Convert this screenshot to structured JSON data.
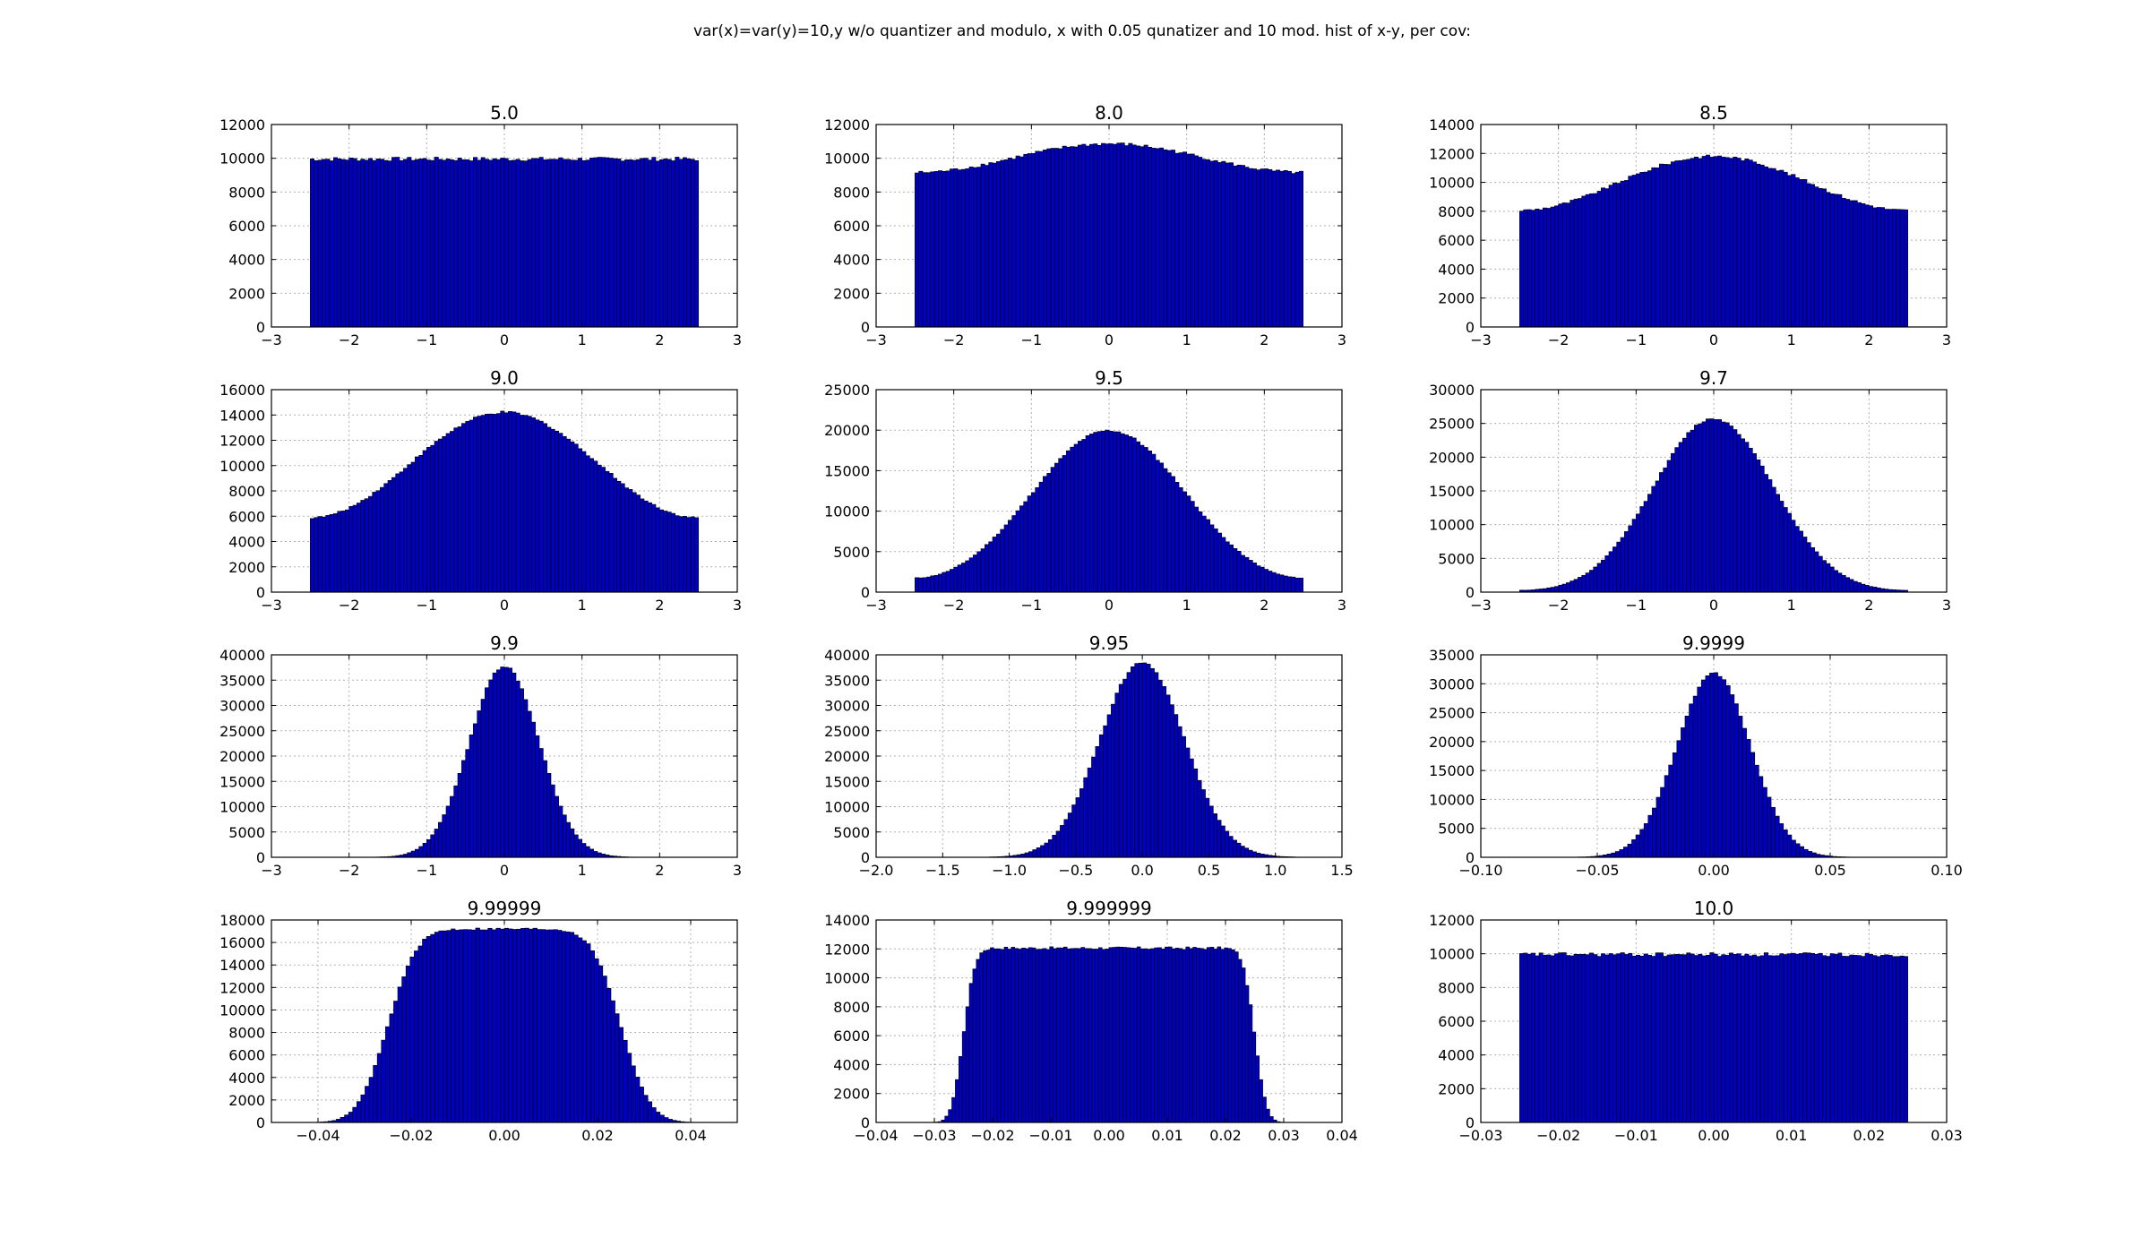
{
  "figure": {
    "suptitle": "var(x)=var(y)=10,y w/o quantizer and modulo, x with 0.05 qunatizer and 10 mod. hist of x-y, per cov:"
  },
  "colors": {
    "bar_fill": "#0000bf",
    "bar_edge": "#000000",
    "grid": "#b0b0b0",
    "axes": "#000000"
  },
  "chart_data": [
    {
      "type": "bar",
      "title": "5.0",
      "shape": "uniform",
      "xlim": [
        -3,
        3
      ],
      "ylim": [
        0,
        12000
      ],
      "xticks": [
        -3,
        -2,
        -1,
        0,
        1,
        2,
        3
      ],
      "xtick_labels": [
        "−3",
        "−2",
        "−1",
        "0",
        "1",
        "2",
        "3"
      ],
      "yticks": [
        0,
        2000,
        4000,
        6000,
        8000,
        10000,
        12000
      ],
      "ytick_labels": [
        "0",
        "2000",
        "4000",
        "6000",
        "8000",
        "10000",
        "12000"
      ],
      "bins": 100,
      "x_range": [
        -2.5,
        2.5
      ],
      "level": 9950,
      "noise": 120,
      "xlabel": "",
      "ylabel": ""
    },
    {
      "type": "bar",
      "title": "8.0",
      "shape": "gauss_mod",
      "xlim": [
        -3,
        3
      ],
      "ylim": [
        0,
        12000
      ],
      "xticks": [
        -3,
        -2,
        -1,
        0,
        1,
        2,
        3
      ],
      "xtick_labels": [
        "−3",
        "−2",
        "−1",
        "0",
        "1",
        "2",
        "3"
      ],
      "yticks": [
        0,
        2000,
        4000,
        6000,
        8000,
        10000,
        12000
      ],
      "ytick_labels": [
        "0",
        "2000",
        "4000",
        "6000",
        "8000",
        "10000",
        "12000"
      ],
      "bins": 100,
      "x_range": [
        -2.5,
        2.5
      ],
      "sigma": 2.0,
      "peak": 10850,
      "noise": 100,
      "xlabel": "",
      "ylabel": ""
    },
    {
      "type": "bar",
      "title": "8.5",
      "shape": "gauss_mod",
      "xlim": [
        -3,
        3
      ],
      "ylim": [
        0,
        14000
      ],
      "xticks": [
        -3,
        -2,
        -1,
        0,
        1,
        2,
        3
      ],
      "xtick_labels": [
        "−3",
        "−2",
        "−1",
        "0",
        "1",
        "2",
        "3"
      ],
      "yticks": [
        0,
        2000,
        4000,
        6000,
        8000,
        10000,
        12000,
        14000
      ],
      "ytick_labels": [
        "0",
        "2000",
        "4000",
        "6000",
        "8000",
        "10000",
        "12000",
        "14000"
      ],
      "bins": 100,
      "x_range": [
        -2.5,
        2.5
      ],
      "sigma": 1.73,
      "peak": 11800,
      "noise": 110,
      "xlabel": "",
      "ylabel": ""
    },
    {
      "type": "bar",
      "title": "9.0",
      "shape": "gauss_mod",
      "xlim": [
        -3,
        3
      ],
      "ylim": [
        0,
        16000
      ],
      "xticks": [
        -3,
        -2,
        -1,
        0,
        1,
        2,
        3
      ],
      "xtick_labels": [
        "−3",
        "−2",
        "−1",
        "0",
        "1",
        "2",
        "3"
      ],
      "yticks": [
        0,
        2000,
        4000,
        6000,
        8000,
        10000,
        12000,
        14000,
        16000
      ],
      "ytick_labels": [
        "0",
        "2000",
        "4000",
        "6000",
        "8000",
        "10000",
        "12000",
        "14000",
        "16000"
      ],
      "bins": 100,
      "x_range": [
        -2.5,
        2.5
      ],
      "sigma": 1.41,
      "peak": 14200,
      "noise": 110,
      "xlabel": "",
      "ylabel": ""
    },
    {
      "type": "bar",
      "title": "9.5",
      "shape": "gauss_mod",
      "xlim": [
        -3,
        3
      ],
      "ylim": [
        0,
        25000
      ],
      "xticks": [
        -3,
        -2,
        -1,
        0,
        1,
        2,
        3
      ],
      "xtick_labels": [
        "−3",
        "−2",
        "−1",
        "0",
        "1",
        "2",
        "3"
      ],
      "yticks": [
        0,
        5000,
        10000,
        15000,
        20000,
        25000
      ],
      "ytick_labels": [
        "0",
        "5000",
        "10000",
        "15000",
        "20000",
        "25000"
      ],
      "bins": 100,
      "x_range": [
        -2.5,
        2.5
      ],
      "sigma": 1.0,
      "peak": 19950,
      "noise": 150,
      "xlabel": "",
      "ylabel": ""
    },
    {
      "type": "bar",
      "title": "9.7",
      "shape": "gauss_mod",
      "xlim": [
        -3,
        3
      ],
      "ylim": [
        0,
        30000
      ],
      "xticks": [
        -3,
        -2,
        -1,
        0,
        1,
        2,
        3
      ],
      "xtick_labels": [
        "−3",
        "−2",
        "−1",
        "0",
        "1",
        "2",
        "3"
      ],
      "yticks": [
        0,
        5000,
        10000,
        15000,
        20000,
        25000,
        30000
      ],
      "ytick_labels": [
        "0",
        "5000",
        "10000",
        "15000",
        "20000",
        "25000",
        "30000"
      ],
      "bins": 100,
      "x_range": [
        -2.5,
        2.5
      ],
      "sigma": 0.775,
      "peak": 25700,
      "noise": 180,
      "xlabel": "",
      "ylabel": ""
    },
    {
      "type": "bar",
      "title": "9.9",
      "shape": "gauss",
      "xlim": [
        -3,
        3
      ],
      "ylim": [
        0,
        40000
      ],
      "xticks": [
        -3,
        -2,
        -1,
        0,
        1,
        2,
        3
      ],
      "xtick_labels": [
        "−3",
        "−2",
        "−1",
        "0",
        "1",
        "2",
        "3"
      ],
      "yticks": [
        0,
        5000,
        10000,
        15000,
        20000,
        25000,
        30000,
        35000,
        40000
      ],
      "ytick_labels": [
        "0",
        "5000",
        "10000",
        "15000",
        "20000",
        "25000",
        "30000",
        "35000",
        "40000"
      ],
      "bins": 100,
      "x_range": [
        -2.5,
        2.5
      ],
      "sigma": 0.447,
      "peak": 37800,
      "noise": 250,
      "xlabel": "",
      "ylabel": ""
    },
    {
      "type": "bar",
      "title": "9.95",
      "shape": "gauss",
      "xlim": [
        -2.0,
        1.5
      ],
      "ylim": [
        0,
        40000
      ],
      "xticks": [
        -2.0,
        -1.5,
        -1.0,
        -0.5,
        0.0,
        0.5,
        1.0,
        1.5
      ],
      "xtick_labels": [
        "−2.0",
        "−1.5",
        "−1.0",
        "−0.5",
        "0.0",
        "0.5",
        "1.0",
        "1.5"
      ],
      "yticks": [
        0,
        5000,
        10000,
        15000,
        20000,
        25000,
        30000,
        35000,
        40000
      ],
      "ytick_labels": [
        "0",
        "5000",
        "10000",
        "15000",
        "20000",
        "25000",
        "30000",
        "35000",
        "40000"
      ],
      "bins": 100,
      "x_range": [
        -1.65,
        1.3
      ],
      "sigma": 0.316,
      "peak": 38600,
      "noise": 250,
      "xlabel": "",
      "ylabel": ""
    },
    {
      "type": "bar",
      "title": "9.9999",
      "shape": "gauss",
      "xlim": [
        -0.1,
        0.1
      ],
      "ylim": [
        0,
        35000
      ],
      "xticks": [
        -0.1,
        -0.05,
        0.0,
        0.05,
        0.1
      ],
      "xtick_labels": [
        "−0.10",
        "−0.05",
        "0.00",
        "0.05",
        "0.10"
      ],
      "yticks": [
        0,
        5000,
        10000,
        15000,
        20000,
        25000,
        30000,
        35000
      ],
      "ytick_labels": [
        "0",
        "5000",
        "10000",
        "15000",
        "20000",
        "25000",
        "30000",
        "35000"
      ],
      "bins": 100,
      "x_range": [
        -0.088,
        0.088
      ],
      "sigma": 0.0158,
      "peak": 31800,
      "noise": 220,
      "xlabel": "",
      "ylabel": ""
    },
    {
      "type": "bar",
      "title": "9.99999",
      "shape": "smooth_box",
      "xlim": [
        -0.05,
        0.05
      ],
      "ylim": [
        0,
        18000
      ],
      "xticks": [
        -0.04,
        -0.02,
        0.0,
        0.02,
        0.04
      ],
      "xtick_labels": [
        "−0.04",
        "−0.02",
        "0.00",
        "0.02",
        "0.04"
      ],
      "yticks": [
        0,
        2000,
        4000,
        6000,
        8000,
        10000,
        12000,
        14000,
        16000,
        18000
      ],
      "ytick_labels": [
        "0",
        "2000",
        "4000",
        "6000",
        "8000",
        "10000",
        "12000",
        "14000",
        "16000",
        "18000"
      ],
      "bins": 100,
      "x_range": [
        -0.044,
        0.044
      ],
      "half_width": 0.025,
      "edge_sigma": 0.005,
      "level": 17200,
      "noise": 110,
      "xlabel": "",
      "ylabel": ""
    },
    {
      "type": "bar",
      "title": "9.999999",
      "shape": "smooth_box",
      "xlim": [
        -0.04,
        0.04
      ],
      "ylim": [
        0,
        14000
      ],
      "xticks": [
        -0.04,
        -0.03,
        -0.02,
        -0.01,
        0.0,
        0.01,
        0.02,
        0.03,
        0.04
      ],
      "xtick_labels": [
        "−0.04",
        "−0.03",
        "−0.02",
        "−0.01",
        "0.00",
        "0.01",
        "0.02",
        "0.03",
        "0.04"
      ],
      "yticks": [
        0,
        2000,
        4000,
        6000,
        8000,
        10000,
        12000,
        14000
      ],
      "ytick_labels": [
        "0",
        "2000",
        "4000",
        "6000",
        "8000",
        "10000",
        "12000",
        "14000"
      ],
      "bins": 100,
      "x_range": [
        -0.03,
        0.03
      ],
      "half_width": 0.025,
      "edge_sigma": 0.0016,
      "level": 12050,
      "noise": 100,
      "xlabel": "",
      "ylabel": ""
    },
    {
      "type": "bar",
      "title": "10.0",
      "shape": "uniform",
      "xlim": [
        -0.03,
        0.03
      ],
      "ylim": [
        0,
        12000
      ],
      "xticks": [
        -0.03,
        -0.02,
        -0.01,
        0.0,
        0.01,
        0.02,
        0.03
      ],
      "xtick_labels": [
        "−0.03",
        "−0.02",
        "−0.01",
        "0.00",
        "0.01",
        "0.02",
        "0.03"
      ],
      "yticks": [
        0,
        2000,
        4000,
        6000,
        8000,
        10000,
        12000
      ],
      "ytick_labels": [
        "0",
        "2000",
        "4000",
        "6000",
        "8000",
        "10000",
        "12000"
      ],
      "bins": 100,
      "x_range": [
        -0.025,
        0.025
      ],
      "level": 9950,
      "noise": 120,
      "xlabel": "",
      "ylabel": ""
    }
  ]
}
